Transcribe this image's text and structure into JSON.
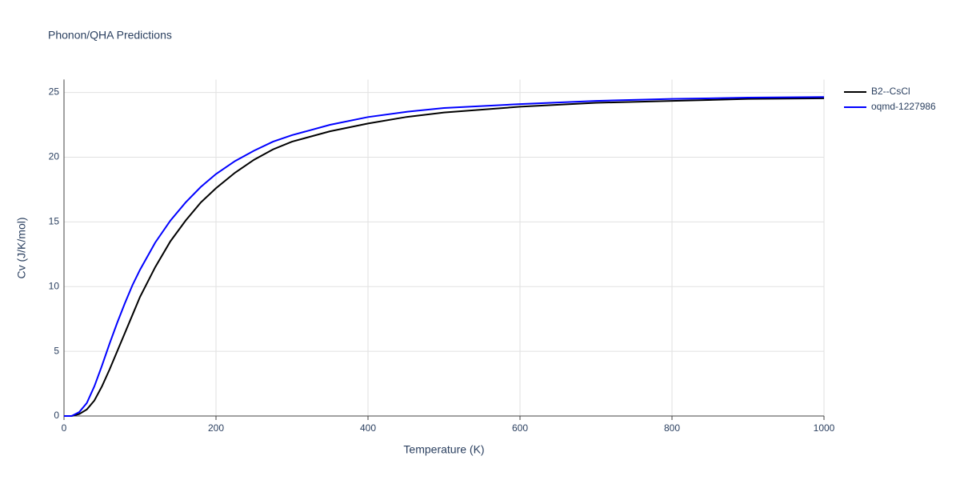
{
  "chart_data": {
    "type": "line",
    "title": "Phonon/QHA Predictions",
    "x_label": "Temperature (K)",
    "y_label": "Cv (J/K/mol)",
    "xlim": [
      0,
      1000
    ],
    "xticks": [
      0,
      200,
      400,
      600,
      800,
      1000
    ],
    "ylim": [
      0,
      26
    ],
    "yticks": [
      0,
      5,
      10,
      15,
      20,
      25
    ],
    "grid": true,
    "legend": "right",
    "x": [
      0,
      10,
      20,
      30,
      40,
      50,
      60,
      70,
      80,
      90,
      100,
      120,
      140,
      160,
      180,
      200,
      225,
      250,
      275,
      300,
      350,
      400,
      450,
      500,
      600,
      700,
      800,
      900,
      1000
    ],
    "series": [
      {
        "name": "B2--CsCl",
        "color": "#000000",
        "values": [
          0,
          0,
          0.15,
          0.5,
          1.2,
          2.3,
          3.6,
          5.0,
          6.4,
          7.8,
          9.2,
          11.5,
          13.5,
          15.1,
          16.5,
          17.6,
          18.8,
          19.8,
          20.6,
          21.2,
          22.0,
          22.6,
          23.1,
          23.45,
          23.9,
          24.2,
          24.35,
          24.5,
          24.55
        ]
      },
      {
        "name": "oqmd-1227986",
        "color": "#0000ff",
        "values": [
          0,
          0,
          0.3,
          1.0,
          2.3,
          3.9,
          5.6,
          7.2,
          8.7,
          10.1,
          11.3,
          13.4,
          15.1,
          16.5,
          17.7,
          18.7,
          19.7,
          20.5,
          21.2,
          21.7,
          22.5,
          23.1,
          23.5,
          23.8,
          24.1,
          24.35,
          24.5,
          24.6,
          24.65
        ]
      }
    ]
  }
}
